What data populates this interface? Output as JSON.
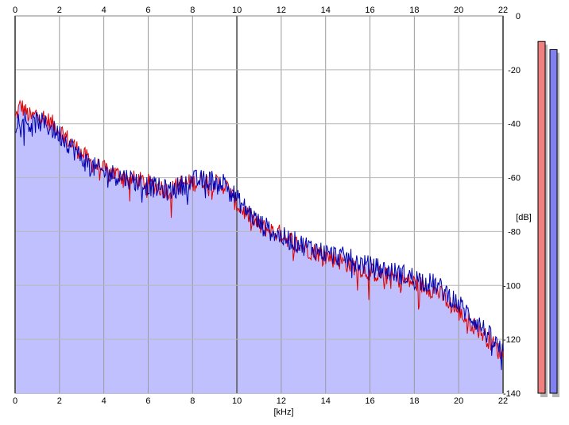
{
  "chart_data": {
    "type": "area",
    "xlabel": "[kHz]",
    "ylabel": "[dB]",
    "xlim": [
      0,
      22
    ],
    "ylim": [
      -140,
      0
    ],
    "x_ticks": [
      "0",
      "2",
      "4",
      "6",
      "8",
      "10",
      "12",
      "14",
      "16",
      "18",
      "20",
      "22"
    ],
    "y_ticks": [
      "0",
      "-20",
      "-40",
      "-60",
      "-80",
      "-100",
      "-120",
      "-140"
    ],
    "grid": true,
    "series": [
      {
        "color": "#e00000",
        "x": [
          0,
          0.25,
          0.5,
          0.75,
          1,
          1.5,
          2,
          2.5,
          3,
          3.5,
          4,
          5,
          6,
          7,
          7.5,
          8,
          8.5,
          9,
          9.5,
          10,
          11,
          12,
          13,
          14,
          15,
          16,
          17,
          18,
          19,
          19.5,
          20,
          21,
          22
        ],
        "values": [
          -38,
          -33,
          -36,
          -38,
          -36,
          -39,
          -42,
          -47,
          -51,
          -55,
          -57,
          -60,
          -62,
          -65,
          -62,
          -62,
          -61,
          -62,
          -63,
          -70,
          -78,
          -81,
          -86,
          -89,
          -92,
          -95,
          -97,
          -99,
          -102,
          -106,
          -110,
          -117,
          -126
        ]
      },
      {
        "color": "#0000b0",
        "x": [
          0,
          0.25,
          0.5,
          0.75,
          1,
          1.5,
          2,
          2.5,
          3,
          3.5,
          4,
          5,
          6,
          7,
          7.5,
          8,
          8.5,
          9,
          9.5,
          10,
          11,
          12,
          13,
          14,
          15,
          16,
          17,
          18,
          19,
          19.5,
          20,
          21,
          22
        ],
        "values": [
          -40,
          -37,
          -39,
          -41,
          -39,
          -41,
          -44,
          -48,
          -53,
          -56,
          -58,
          -60,
          -63,
          -65,
          -63,
          -61,
          -61,
          -61,
          -62,
          -68,
          -77,
          -82,
          -85,
          -88,
          -90,
          -93,
          -95,
          -97,
          -100,
          -103,
          -107,
          -115,
          -125
        ]
      }
    ],
    "fill_color": "#c0c0ff",
    "meters": [
      {
        "channel": "left",
        "color": "#f08080",
        "level": -9.5
      },
      {
        "channel": "right",
        "color": "#8080f0",
        "level": -12.5
      }
    ]
  }
}
